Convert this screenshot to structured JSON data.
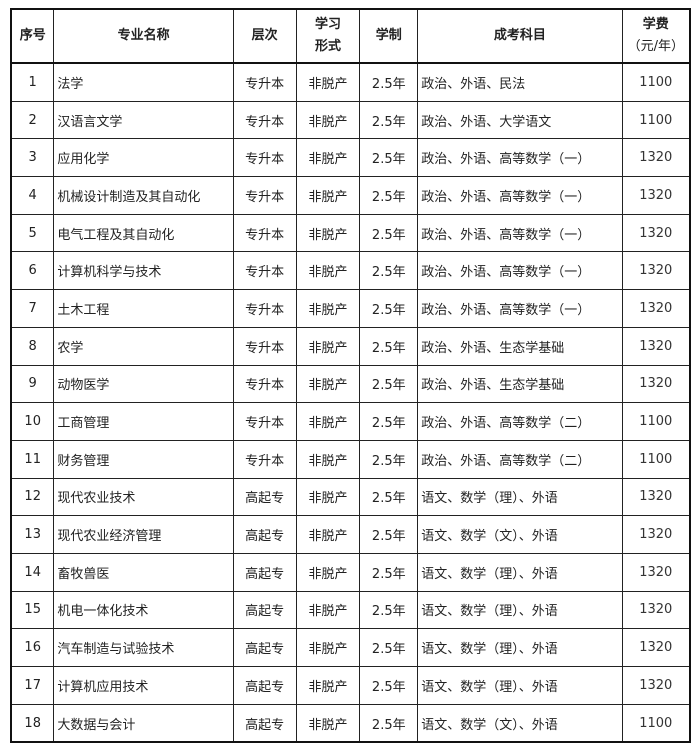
{
  "headers": {
    "no": "序号",
    "major": "专业名称",
    "level": "层次",
    "mode_line1": "学习",
    "mode_line2": "形式",
    "duration": "学制",
    "subjects": "成考科目",
    "fee_line1": "学费",
    "fee_line2": "（元/年）"
  },
  "rows": [
    {
      "no": "1",
      "major": "法学",
      "level": "专升本",
      "mode": "非脱产",
      "duration": "2.5年",
      "subjects": "政治、外语、民法",
      "fee": "1100"
    },
    {
      "no": "2",
      "major": "汉语言文学",
      "level": "专升本",
      "mode": "非脱产",
      "duration": "2.5年",
      "subjects": "政治、外语、大学语文",
      "fee": "1100"
    },
    {
      "no": "3",
      "major": "应用化学",
      "level": "专升本",
      "mode": "非脱产",
      "duration": "2.5年",
      "subjects": "政治、外语、高等数学（一）",
      "fee": "1320"
    },
    {
      "no": "4",
      "major": "机械设计制造及其自动化",
      "level": "专升本",
      "mode": "非脱产",
      "duration": "2.5年",
      "subjects": "政治、外语、高等数学（一）",
      "fee": "1320"
    },
    {
      "no": "5",
      "major": "电气工程及其自动化",
      "level": "专升本",
      "mode": "非脱产",
      "duration": "2.5年",
      "subjects": "政治、外语、高等数学（一）",
      "fee": "1320"
    },
    {
      "no": "6",
      "major": "计算机科学与技术",
      "level": "专升本",
      "mode": "非脱产",
      "duration": "2.5年",
      "subjects": "政治、外语、高等数学（一）",
      "fee": "1320"
    },
    {
      "no": "7",
      "major": "土木工程",
      "level": "专升本",
      "mode": "非脱产",
      "duration": "2.5年",
      "subjects": "政治、外语、高等数学（一）",
      "fee": "1320"
    },
    {
      "no": "8",
      "major": "农学",
      "level": "专升本",
      "mode": "非脱产",
      "duration": "2.5年",
      "subjects": "政治、外语、生态学基础",
      "fee": "1320"
    },
    {
      "no": "9",
      "major": "动物医学",
      "level": "专升本",
      "mode": "非脱产",
      "duration": "2.5年",
      "subjects": "政治、外语、生态学基础",
      "fee": "1320"
    },
    {
      "no": "10",
      "major": "工商管理",
      "level": "专升本",
      "mode": "非脱产",
      "duration": "2.5年",
      "subjects": "政治、外语、高等数学（二）",
      "fee": "1100"
    },
    {
      "no": "11",
      "major": "财务管理",
      "level": "专升本",
      "mode": "非脱产",
      "duration": "2.5年",
      "subjects": "政治、外语、高等数学（二）",
      "fee": "1100"
    },
    {
      "no": "12",
      "major": "现代农业技术",
      "level": "高起专",
      "mode": "非脱产",
      "duration": "2.5年",
      "subjects": "语文、数学（理）、外语",
      "fee": "1320"
    },
    {
      "no": "13",
      "major": "现代农业经济管理",
      "level": "高起专",
      "mode": "非脱产",
      "duration": "2.5年",
      "subjects": "语文、数学（文）、外语",
      "fee": "1320"
    },
    {
      "no": "14",
      "major": "畜牧兽医",
      "level": "高起专",
      "mode": "非脱产",
      "duration": "2.5年",
      "subjects": "语文、数学（理）、外语",
      "fee": "1320"
    },
    {
      "no": "15",
      "major": "机电一体化技术",
      "level": "高起专",
      "mode": "非脱产",
      "duration": "2.5年",
      "subjects": "语文、数学（理）、外语",
      "fee": "1320"
    },
    {
      "no": "16",
      "major": "汽车制造与试验技术",
      "level": "高起专",
      "mode": "非脱产",
      "duration": "2.5年",
      "subjects": "语文、数学（理）、外语",
      "fee": "1320"
    },
    {
      "no": "17",
      "major": "计算机应用技术",
      "level": "高起专",
      "mode": "非脱产",
      "duration": "2.5年",
      "subjects": "语文、数学（理）、外语",
      "fee": "1320"
    },
    {
      "no": "18",
      "major": "大数据与会计",
      "level": "高起专",
      "mode": "非脱产",
      "duration": "2.5年",
      "subjects": "语文、数学（文）、外语",
      "fee": "1100"
    }
  ]
}
